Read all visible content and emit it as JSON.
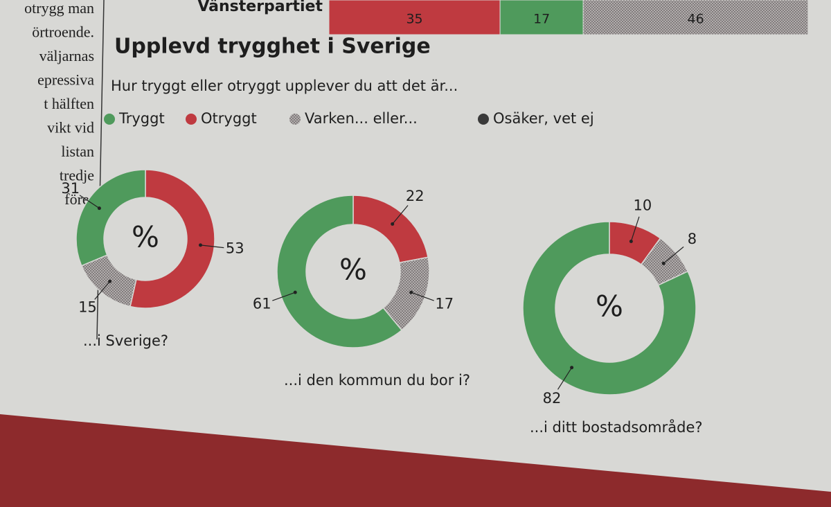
{
  "article_text": [
    "otrygg man",
    "örtroende.",
    "väljarnas",
    "epressiva",
    "t hälften",
    "vikt vid",
    "listan",
    "tredje",
    "före-"
  ],
  "title": "Upplevd trygghet i Sverige",
  "subtitle": "Hur tryggt eller otryggt upplever du att det är...",
  "legend": [
    {
      "name": "Tryggt",
      "color": "#4f9a5c"
    },
    {
      "name": "Otryggt",
      "color": "#bf3a40"
    },
    {
      "name": "Varken... eller...",
      "color": "#9a9595"
    },
    {
      "name": "Osäker, vet ej",
      "color": "#3a3a3a"
    }
  ],
  "chart_data": [
    {
      "type": "stacked_bar",
      "categories": [
        "Vänsterpartiet"
      ],
      "xlim": [
        0,
        98
      ],
      "series": [
        {
          "color": "#bf3a40",
          "values": [
            35
          ]
        },
        {
          "color": "#4f9a5c",
          "values": [
            17
          ]
        },
        {
          "color": "#9a9595",
          "values": [
            46
          ]
        }
      ]
    },
    {
      "type": "pie",
      "center_label": "%",
      "caption": "...i Sverige?",
      "values": [
        31,
        53,
        15
      ]
    },
    {
      "type": "pie",
      "center_label": "%",
      "caption": "...i den kommun du bor i?",
      "values": [
        61,
        22,
        17
      ]
    },
    {
      "type": "pie",
      "center_label": "%",
      "caption": "...i ditt bostadsområde?",
      "values": [
        82,
        10,
        8
      ]
    }
  ]
}
